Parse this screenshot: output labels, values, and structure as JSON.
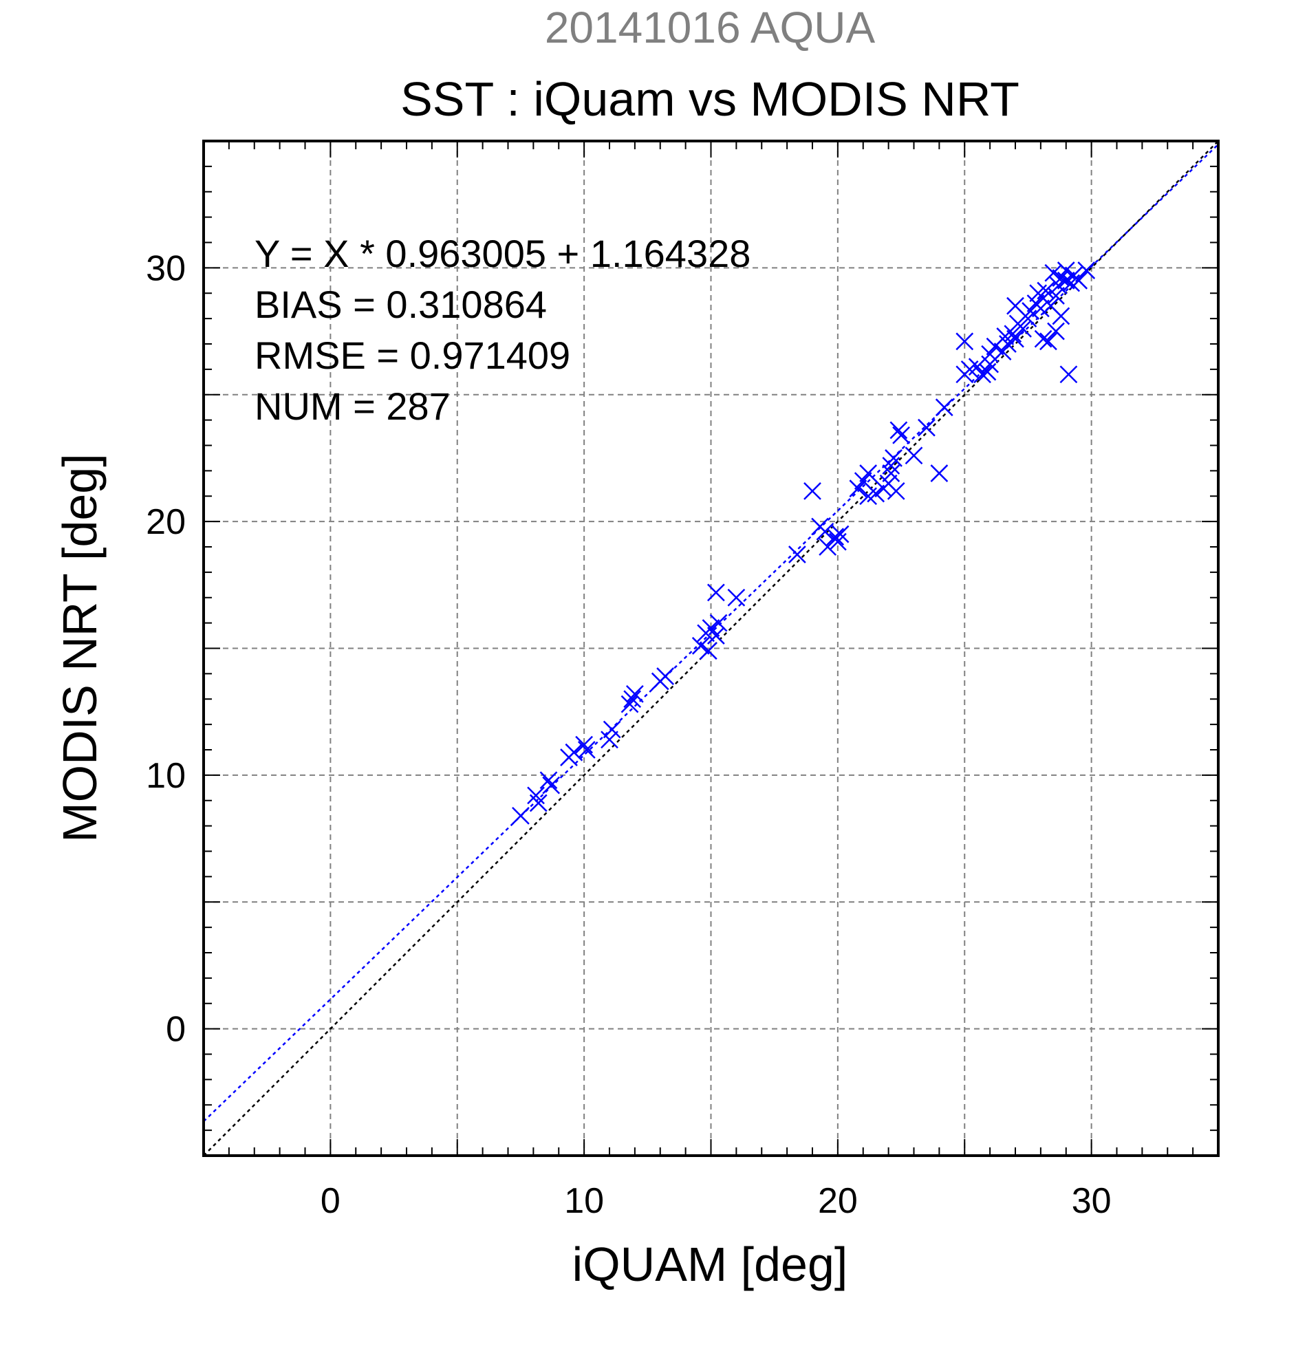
{
  "chart_data": {
    "type": "scatter",
    "title": "SST : iQuam vs MODIS NRT",
    "subtitle": "20141016 AQUA",
    "xlabel": "iQUAM [deg]",
    "ylabel": "MODIS NRT [deg]",
    "xlim": [
      -5,
      35
    ],
    "ylim": [
      -5,
      35
    ],
    "xticks": [
      0,
      10,
      20,
      30
    ],
    "yticks": [
      0,
      10,
      20,
      30
    ],
    "grid": true,
    "grid_step": 5,
    "colors": {
      "points": "#0000ff",
      "fit_line": "#0000ff",
      "identity_line": "#000000",
      "subtitle": "#808080",
      "grid": "#808080"
    },
    "stats": [
      "Y = X * 0.963005 + 1.164328",
      "BIAS = 0.310864",
      "RMSE = 0.971409",
      "NUM = 287"
    ],
    "fit": {
      "slope": 0.963005,
      "intercept": 1.164328
    },
    "series": [
      {
        "marker": "x",
        "points": [
          [
            7.5,
            8.4
          ],
          [
            8.2,
            8.9
          ],
          [
            8.1,
            9.2
          ],
          [
            8.7,
            9.6
          ],
          [
            8.6,
            9.8
          ],
          [
            9.4,
            10.7
          ],
          [
            9.6,
            10.9
          ],
          [
            10.0,
            11.2
          ],
          [
            10.1,
            11.0
          ],
          [
            11.0,
            11.4
          ],
          [
            11.1,
            11.8
          ],
          [
            11.8,
            12.8
          ],
          [
            11.9,
            13.0
          ],
          [
            12.0,
            13.2
          ],
          [
            13.0,
            13.7
          ],
          [
            13.2,
            13.9
          ],
          [
            14.6,
            15.1
          ],
          [
            14.8,
            15.6
          ],
          [
            14.9,
            14.9
          ],
          [
            15.0,
            15.8
          ],
          [
            15.2,
            15.5
          ],
          [
            15.3,
            16.0
          ],
          [
            15.2,
            17.2
          ],
          [
            16.0,
            17.0
          ],
          [
            18.4,
            18.7
          ],
          [
            19.0,
            21.2
          ],
          [
            19.3,
            19.8
          ],
          [
            19.5,
            19.6
          ],
          [
            19.6,
            19.0
          ],
          [
            19.9,
            19.4
          ],
          [
            20.0,
            19.2
          ],
          [
            20.1,
            19.5
          ],
          [
            20.8,
            21.3
          ],
          [
            21.0,
            21.6
          ],
          [
            21.2,
            21.9
          ],
          [
            21.2,
            21.0
          ],
          [
            21.5,
            21.1
          ],
          [
            21.8,
            21.3
          ],
          [
            22.0,
            21.5
          ],
          [
            22.1,
            22.2
          ],
          [
            22.2,
            22.5
          ],
          [
            22.3,
            21.2
          ],
          [
            22.1,
            21.9
          ],
          [
            22.4,
            23.6
          ],
          [
            22.5,
            23.4
          ],
          [
            23.0,
            22.6
          ],
          [
            23.5,
            23.7
          ],
          [
            24.0,
            21.9
          ],
          [
            24.2,
            24.5
          ],
          [
            25.0,
            27.1
          ],
          [
            25.0,
            25.8
          ],
          [
            25.2,
            26.0
          ],
          [
            25.5,
            26.1
          ],
          [
            25.7,
            25.8
          ],
          [
            25.9,
            25.9
          ],
          [
            26.0,
            26.2
          ],
          [
            26.0,
            26.6
          ],
          [
            26.2,
            26.9
          ],
          [
            26.5,
            26.7
          ],
          [
            26.6,
            27.3
          ],
          [
            26.7,
            27.0
          ],
          [
            26.9,
            27.4
          ],
          [
            27.0,
            27.2
          ],
          [
            27.1,
            27.8
          ],
          [
            27.0,
            28.5
          ],
          [
            27.3,
            27.6
          ],
          [
            27.5,
            28.0
          ],
          [
            27.6,
            28.3
          ],
          [
            27.8,
            28.6
          ],
          [
            27.9,
            29.0
          ],
          [
            28.0,
            28.4
          ],
          [
            28.1,
            28.8
          ],
          [
            28.1,
            27.2
          ],
          [
            28.3,
            27.1
          ],
          [
            28.2,
            29.1
          ],
          [
            28.4,
            28.5
          ],
          [
            28.5,
            29.8
          ],
          [
            28.6,
            28.9
          ],
          [
            28.6,
            27.5
          ],
          [
            28.7,
            29.3
          ],
          [
            28.8,
            28.1
          ],
          [
            28.8,
            29.6
          ],
          [
            29.0,
            29.5
          ],
          [
            29.0,
            29.9
          ],
          [
            29.1,
            25.8
          ],
          [
            29.2,
            29.4
          ],
          [
            29.3,
            29.7
          ],
          [
            29.5,
            29.5
          ],
          [
            29.8,
            29.9
          ]
        ]
      }
    ]
  }
}
